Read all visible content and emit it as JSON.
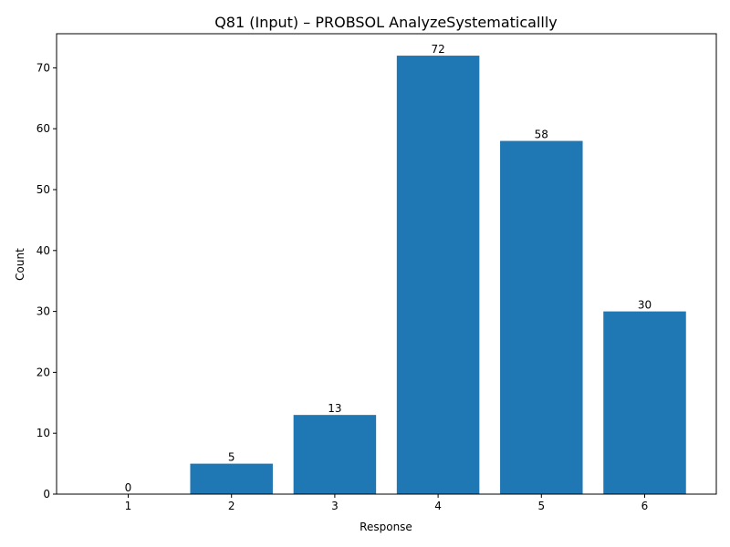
{
  "chart_data": {
    "type": "bar",
    "title": "Q81 (Input) – PROBSOL AnalyzeSystematicallly",
    "xlabel": "Response",
    "ylabel": "Count",
    "categories": [
      "1",
      "2",
      "3",
      "4",
      "5",
      "6"
    ],
    "values": [
      0,
      5,
      13,
      72,
      58,
      30
    ],
    "data_labels": [
      "0",
      "5",
      "13",
      "72",
      "58",
      "30"
    ],
    "ylim": [
      0,
      75.6
    ],
    "yticks": [
      0,
      10,
      20,
      30,
      40,
      50,
      60,
      70
    ],
    "ytick_labels": [
      "0",
      "10",
      "20",
      "30",
      "40",
      "50",
      "60",
      "70"
    ],
    "bar_color": "#1f77b4",
    "grid": false,
    "legend": "none"
  }
}
